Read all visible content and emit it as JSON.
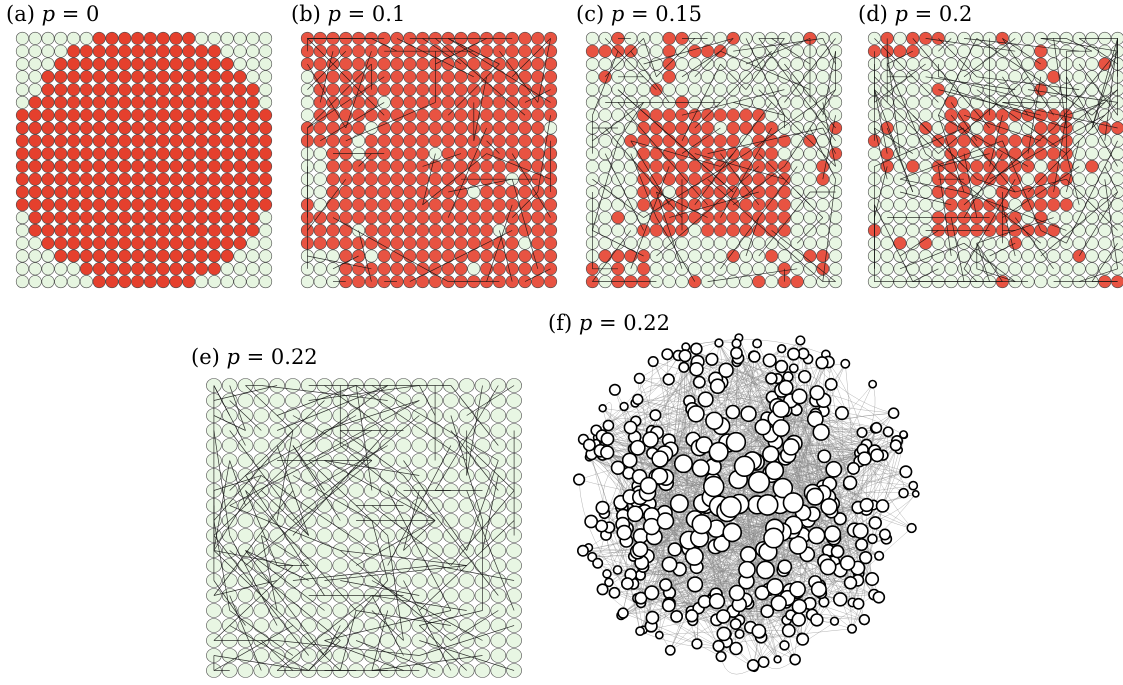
{
  "colors": {
    "active": "#e5402d",
    "inactive": "#e6f5e0",
    "node_stroke": "#4a4a4a",
    "edge": "#111111",
    "network_node_fill": "#ffffff",
    "network_node_stroke": "#000000",
    "network_edge": "#888888"
  },
  "panels": [
    {
      "id": "a",
      "prefix": "(a)",
      "var": "p",
      "rel": " = 0",
      "grid_size": 20,
      "state": "disk",
      "shortcuts": 0
    },
    {
      "id": "b",
      "prefix": "(b)",
      "var": "p",
      "rel": " = 0.1",
      "grid_size": 20,
      "state": "mostly-active",
      "shortcuts": 60
    },
    {
      "id": "c",
      "prefix": "(c)",
      "var": "p",
      "rel": " = 0.15",
      "grid_size": 20,
      "state": "core-plus-clusters",
      "shortcuts": 90
    },
    {
      "id": "d",
      "prefix": "(d)",
      "var": "p",
      "rel": " = 0.2",
      "grid_size": 20,
      "state": "small-core-scattered",
      "shortcuts": 130
    },
    {
      "id": "e",
      "prefix": "(e)",
      "var": "p",
      "rel": " = 0.22",
      "grid_size": 20,
      "state": "all-inactive",
      "shortcuts": 150
    },
    {
      "id": "f",
      "prefix": "(f)",
      "var": "p",
      "rel": " = 0.22",
      "state": "network-layout",
      "nodes": 400
    }
  ]
}
